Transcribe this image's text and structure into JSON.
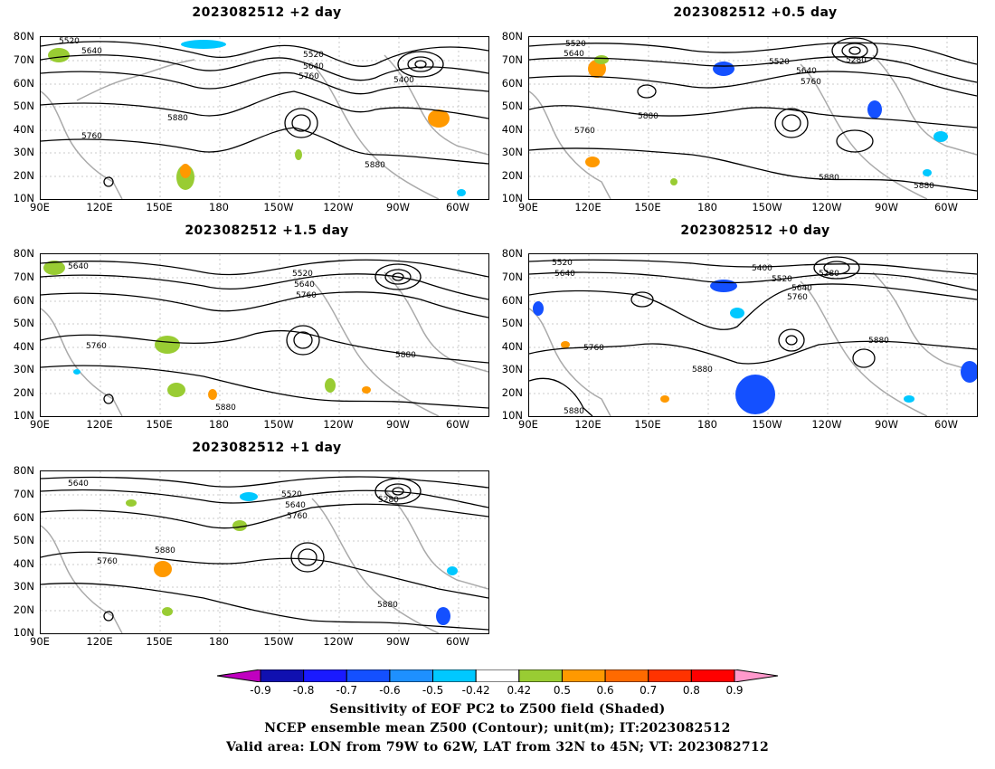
{
  "panels": [
    {
      "title": "2023082512 +2 day",
      "contour_labels": [
        "5520",
        "5640",
        "5520",
        "5640",
        "5760",
        "5400",
        "5880",
        "5760",
        "5880"
      ]
    },
    {
      "title": "2023082512 +0.5 day",
      "contour_labels": [
        "5520",
        "5640",
        "5520",
        "5640",
        "5760",
        "5280",
        "5880",
        "5760",
        "5880",
        "5880"
      ]
    },
    {
      "title": "2023082512 +1.5 day",
      "contour_labels": [
        "5640",
        "5520",
        "5640",
        "5760",
        "5760",
        "5880",
        "5880"
      ]
    },
    {
      "title": "2023082512 +0 day",
      "contour_labels": [
        "5520",
        "5640",
        "5400",
        "5280",
        "5520",
        "5640",
        "5760",
        "5760",
        "5880",
        "5880",
        "5880"
      ]
    },
    {
      "title": "2023082512 +1 day",
      "contour_labels": [
        "5640",
        "5520",
        "5640",
        "5760",
        "5280",
        "5880",
        "5760",
        "5880"
      ]
    }
  ],
  "axes": {
    "lat_labels": [
      "80N",
      "70N",
      "60N",
      "50N",
      "40N",
      "30N",
      "20N",
      "10N"
    ],
    "lon_labels": [
      "90E",
      "120E",
      "150E",
      "180",
      "150W",
      "120W",
      "90W",
      "60W"
    ]
  },
  "colorbar": {
    "ticks": [
      "-0.9",
      "-0.8",
      "-0.7",
      "-0.6",
      "-0.5",
      "-0.42",
      "0.42",
      "0.5",
      "0.6",
      "0.7",
      "0.8",
      "0.9"
    ],
    "colors": [
      "#c000c0",
      "#1010b0",
      "#1a1aff",
      "#1450ff",
      "#1e90ff",
      "#00c8ff",
      "#ffffff",
      "#99cc33",
      "#ff9900",
      "#ff6a00",
      "#ff3300",
      "#ff0000",
      "#ff99cc"
    ]
  },
  "footer": {
    "line1": "Sensitivity of EOF PC2 to Z500 field (Shaded)",
    "line2": "NCEP ensemble mean Z500 (Contour); unit(m); IT:2023082512",
    "line3": "Valid area: LON from 79W to 62W, LAT from 32N to 45N; VT: 2023082712"
  }
}
